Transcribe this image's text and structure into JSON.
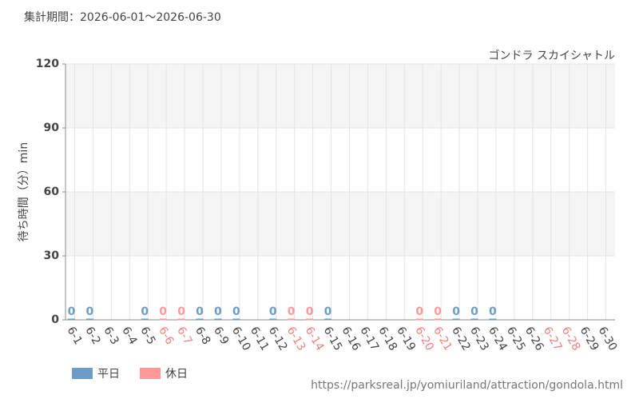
{
  "chart_data": {
    "type": "bar",
    "title": "集計期間：2026-06-01～2026-06-30",
    "subtitle": "ゴンドラ スカイシャトル",
    "y_label": "待ち時間（分）min",
    "source": "https://parksreal.jp/yomiuriland/attraction/gondola.html",
    "categories": [
      "6-1",
      "6-2",
      "6-3",
      "6-4",
      "6-5",
      "6-6",
      "6-7",
      "6-8",
      "6-9",
      "6-10",
      "6-11",
      "6-12",
      "6-13",
      "6-14",
      "6-15",
      "6-16",
      "6-17",
      "6-18",
      "6-19",
      "6-20",
      "6-21",
      "6-22",
      "6-23",
      "6-24",
      "6-25",
      "6-26",
      "6-27",
      "6-28",
      "6-29",
      "6-30"
    ],
    "category_label_colors": [
      "#444",
      "#444",
      "#444",
      "#444",
      "#444",
      "#f08080",
      "#f08080",
      "#444",
      "#444",
      "#444",
      "#444",
      "#444",
      "#f08080",
      "#f08080",
      "#444",
      "#444",
      "#444",
      "#444",
      "#444",
      "#f08080",
      "#f08080",
      "#444",
      "#444",
      "#444",
      "#444",
      "#444",
      "#f08080",
      "#f08080",
      "#444",
      "#444"
    ],
    "series": [
      {
        "name": "平日",
        "color": "#6b9dc8",
        "values": [
          0,
          0,
          null,
          null,
          0,
          null,
          null,
          0,
          0,
          0,
          null,
          0,
          null,
          null,
          0,
          null,
          null,
          null,
          null,
          null,
          null,
          0,
          0,
          0,
          null,
          null,
          null,
          null,
          null,
          null
        ]
      },
      {
        "name": "休日",
        "color": "#ff9999",
        "values": [
          null,
          null,
          null,
          null,
          null,
          0,
          0,
          null,
          null,
          null,
          null,
          null,
          0,
          0,
          null,
          null,
          null,
          null,
          null,
          0,
          0,
          null,
          null,
          null,
          null,
          null,
          null,
          null,
          null,
          null
        ]
      }
    ],
    "ylim": [
      0,
      120
    ],
    "yticks": [
      0,
      30,
      60,
      90,
      120
    ],
    "grid": true
  }
}
